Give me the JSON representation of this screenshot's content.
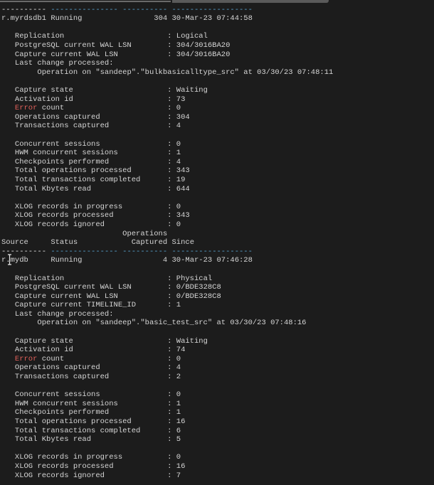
{
  "colors": {
    "background": "#1c1c1c",
    "text": "#d6d6d6",
    "error": "#e0605a",
    "dashes": "#5aa8d6"
  },
  "header": {
    "source": "Source",
    "status": "Status",
    "ops_top": "Operations",
    "ops": "Captured",
    "since": "Since"
  },
  "last_change_label": "Last change processed:",
  "sources": [
    {
      "name": "r.myrdsdb1",
      "status": "Running",
      "ops": "304",
      "since": "30-Mar-23 07:44:58",
      "info": [
        {
          "label": "Replication",
          "value": "Logical"
        },
        {
          "label": "PostgreSQL current WAL LSN",
          "value": "304/3016BA20"
        },
        {
          "label": "Capture current WAL LSN",
          "value": "304/3016BA20"
        }
      ],
      "last_change": "Operation on \"sandeep\".\"bulkbasicalltype_src\" at 03/30/23 07:48:11",
      "groups": [
        [
          {
            "label": "Capture state",
            "value": "Waiting"
          },
          {
            "label": "Activation id",
            "value": "73"
          },
          {
            "label": "Error count",
            "highlight": "Error",
            "value": "0"
          },
          {
            "label": "Operations captured",
            "value": "304"
          },
          {
            "label": "Transactions captured",
            "value": "4"
          }
        ],
        [
          {
            "label": "Concurrent sessions",
            "value": "0"
          },
          {
            "label": "HWM concurrent sessions",
            "value": "1"
          },
          {
            "label": "Checkpoints performed",
            "value": "4"
          },
          {
            "label": "Total operations processed",
            "value": "343"
          },
          {
            "label": "Total transactions completed",
            "value": "19"
          },
          {
            "label": "Total Kbytes read",
            "value": "644"
          }
        ],
        [
          {
            "label": "XLOG records in progress",
            "value": "0"
          },
          {
            "label": "XLOG records processed",
            "value": "343"
          },
          {
            "label": "XLOG records ignored",
            "value": "0"
          }
        ]
      ]
    },
    {
      "name": "r.mydb",
      "status": "Running",
      "ops": "4",
      "since": "30-Mar-23 07:46:28",
      "info": [
        {
          "label": "Replication",
          "value": "Physical"
        },
        {
          "label": "PostgreSQL current WAL LSN",
          "value": "0/BDE328C8"
        },
        {
          "label": "Capture current WAL LSN",
          "value": "0/BDE328C8"
        },
        {
          "label": "Capture current TIMELINE_ID",
          "value": "1"
        }
      ],
      "last_change": "Operation on \"sandeep\".\"basic_test_src\" at 03/30/23 07:48:16",
      "groups": [
        [
          {
            "label": "Capture state",
            "value": "Waiting"
          },
          {
            "label": "Activation id",
            "value": "74"
          },
          {
            "label": "Error count",
            "highlight": "Error",
            "value": "0"
          },
          {
            "label": "Operations captured",
            "value": "4"
          },
          {
            "label": "Transactions captured",
            "value": "2"
          }
        ],
        [
          {
            "label": "Concurrent sessions",
            "value": "0"
          },
          {
            "label": "HWM concurrent sessions",
            "value": "1"
          },
          {
            "label": "Checkpoints performed",
            "value": "1"
          },
          {
            "label": "Total operations processed",
            "value": "16"
          },
          {
            "label": "Total transactions completed",
            "value": "6"
          },
          {
            "label": "Total Kbytes read",
            "value": "5"
          }
        ],
        [
          {
            "label": "XLOG records in progress",
            "value": "0"
          },
          {
            "label": "XLOG records processed",
            "value": "16"
          },
          {
            "label": "XLOG records ignored",
            "value": "7"
          }
        ]
      ]
    }
  ]
}
